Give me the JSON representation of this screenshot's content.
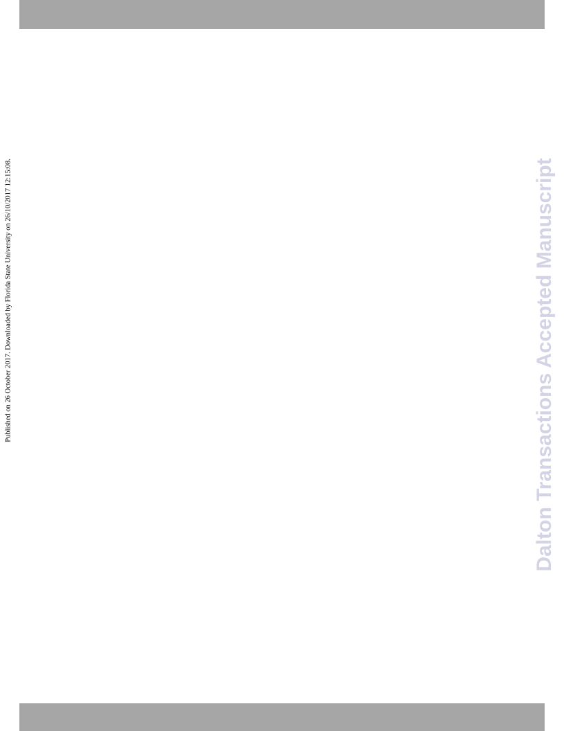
{
  "side_note": "Published on 26 October 2017. Downloaded by Florida State University on 26/10/2017 12:15:08.",
  "watermark": "Dalton Transactions Accepted Manuscript"
}
